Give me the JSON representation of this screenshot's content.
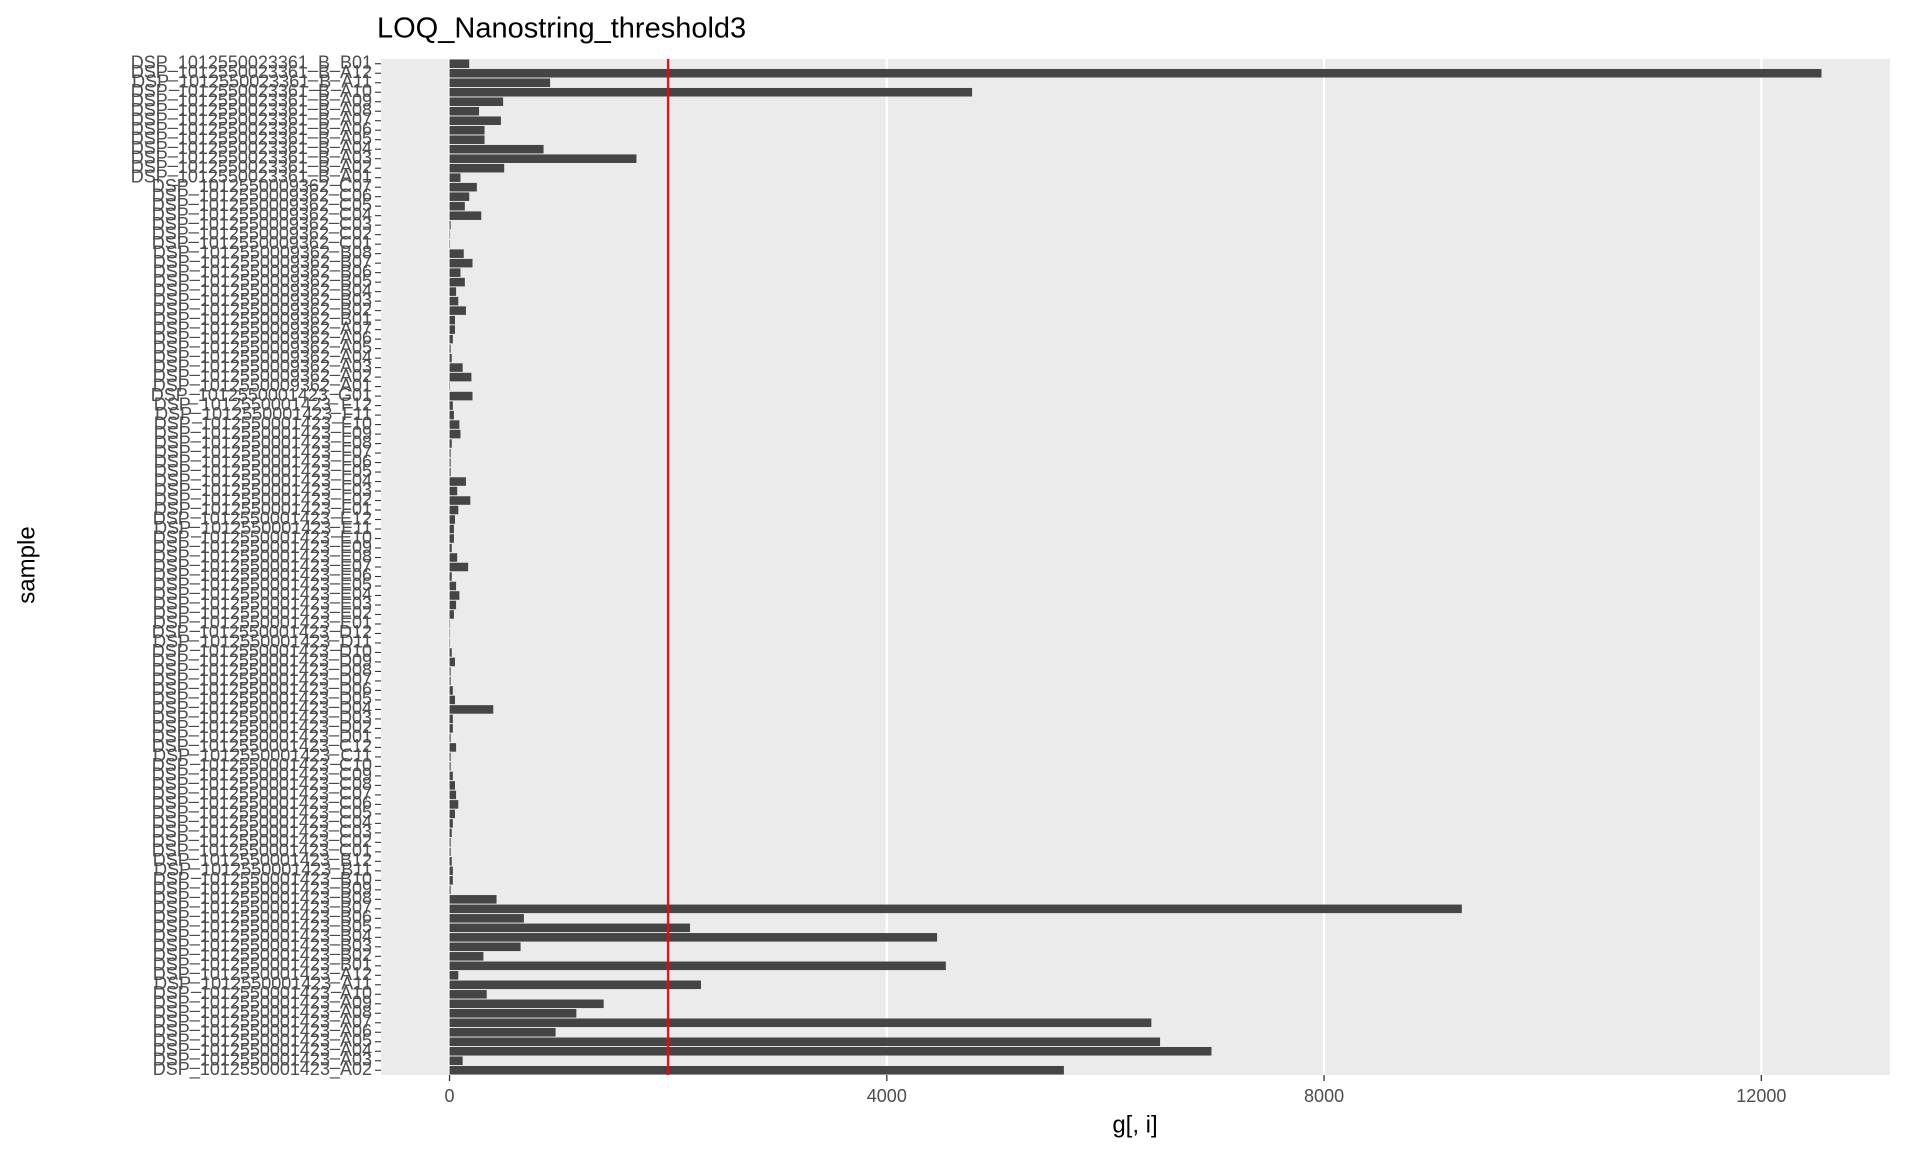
{
  "chart_data": {
    "type": "bar",
    "orientation": "horizontal",
    "title": "LOQ_Nanostring_threshold3",
    "x_label": "g[, i]",
    "y_label": "sample",
    "color": "#454545",
    "threshold": 2000,
    "threshold_color": "#ff0000",
    "xlim": [
      -627,
      13177
    ],
    "xticks": [
      0,
      4000,
      8000,
      12000
    ],
    "grid": true,
    "categories": [
      "DSP_1012550023361_B_B01",
      "DSP_1012550023361_B_A12",
      "DSP_1012550023361_B_A11",
      "DSP_1012550023361_B_A10",
      "DSP_1012550023361_B_A09",
      "DSP_1012550023361_B_A08",
      "DSP_1012550023361_B_A07",
      "DSP_1012550023361_B_A06",
      "DSP_1012550023361_B_A05",
      "DSP_1012550023361_B_A04",
      "DSP_1012550023361_B_A03",
      "DSP_1012550023361_B_A02",
      "DSP_1012550023361_B_A01",
      "DSP_1012550009362_C07",
      "DSP_1012550009362_C06",
      "DSP_1012550009362_C05",
      "DSP_1012550009362_C04",
      "DSP_1012550009362_C03",
      "DSP_1012550009362_C02",
      "DSP_1012550009362_C01",
      "DSP_1012550009362_B08",
      "DSP_1012550009362_B07",
      "DSP_1012550009362_B06",
      "DSP_1012550009362_B05",
      "DSP_1012550009362_B04",
      "DSP_1012550009362_B03",
      "DSP_1012550009362_B02",
      "DSP_1012550009362_B01",
      "DSP_1012550009362_A07",
      "DSP_1012550009362_A06",
      "DSP_1012550009362_A05",
      "DSP_1012550009362_A04",
      "DSP_1012550009362_A03",
      "DSP_1012550009362_A02",
      "DSP_1012550009362_A01",
      "DSP_1012550001423_G01",
      "DSP_1012550001423_F12",
      "DSP_1012550001423_F11",
      "DSP_1012550001423_F10",
      "DSP_1012550001423_F09",
      "DSP_1012550001423_F08",
      "DSP_1012550001423_F07",
      "DSP_1012550001423_F06",
      "DSP_1012550001423_F05",
      "DSP_1012550001423_F04",
      "DSP_1012550001423_F03",
      "DSP_1012550001423_F02",
      "DSP_1012550001423_F01",
      "DSP_1012550001423_E12",
      "DSP_1012550001423_E11",
      "DSP_1012550001423_E10",
      "DSP_1012550001423_E09",
      "DSP_1012550001423_E08",
      "DSP_1012550001423_E07",
      "DSP_1012550001423_E06",
      "DSP_1012550001423_E05",
      "DSP_1012550001423_E04",
      "DSP_1012550001423_E03",
      "DSP_1012550001423_E02",
      "DSP_1012550001423_E01",
      "DSP_1012550001423_D12",
      "DSP_1012550001423_D11",
      "DSP_1012550001423_D10",
      "DSP_1012550001423_D09",
      "DSP_1012550001423_D08",
      "DSP_1012550001423_D07",
      "DSP_1012550001423_D06",
      "DSP_1012550001423_D05",
      "DSP_1012550001423_D04",
      "DSP_1012550001423_D03",
      "DSP_1012550001423_D02",
      "DSP_1012550001423_D01",
      "DSP_1012550001423_C12",
      "DSP_1012550001423_C11",
      "DSP_1012550001423_C10",
      "DSP_1012550001423_C09",
      "DSP_1012550001423_C08",
      "DSP_1012550001423_C07",
      "DSP_1012550001423_C06",
      "DSP_1012550001423_C05",
      "DSP_1012550001423_C04",
      "DSP_1012550001423_C03",
      "DSP_1012550001423_C02",
      "DSP_1012550001423_C01",
      "DSP_1012550001423_B12",
      "DSP_1012550001423_B11",
      "DSP_1012550001423_B10",
      "DSP_1012550001423_B09",
      "DSP_1012550001423_B08",
      "DSP_1012550001423_B07",
      "DSP_1012550001423_B06",
      "DSP_1012550001423_B05",
      "DSP_1012550001423_B04",
      "DSP_1012550001423_B03",
      "DSP_1012550001423_B02",
      "DSP_1012550001423_B01",
      "DSP_1012550001423_A12",
      "DSP_1012550001423_A11",
      "DSP_1012550001423_A10",
      "DSP_1012550001423_A09",
      "DSP_1012550001423_A08",
      "DSP_1012550001423_A07",
      "DSP_1012550001423_A06",
      "DSP_1012550001423_A05",
      "DSP_1012550001423_A04",
      "DSP_1012550001423_A03",
      "DSP_1012550001423_A02"
    ],
    "values": [
      180,
      12550,
      920,
      4780,
      490,
      270,
      470,
      320,
      320,
      860,
      1710,
      500,
      100,
      250,
      180,
      140,
      290,
      10,
      5,
      5,
      130,
      210,
      100,
      140,
      60,
      80,
      150,
      50,
      50,
      30,
      10,
      20,
      120,
      200,
      5,
      210,
      30,
      40,
      90,
      100,
      20,
      10,
      10,
      10,
      150,
      70,
      190,
      80,
      50,
      40,
      40,
      20,
      70,
      170,
      20,
      60,
      90,
      60,
      40,
      5,
      5,
      5,
      20,
      50,
      10,
      10,
      30,
      50,
      400,
      30,
      30,
      10,
      60,
      10,
      10,
      30,
      50,
      60,
      80,
      50,
      30,
      20,
      10,
      10,
      20,
      30,
      30,
      10,
      430,
      9260,
      680,
      2200,
      4460,
      650,
      310,
      4540,
      80,
      2300,
      340,
      1410,
      1160,
      6420,
      970,
      6500,
      6970,
      120,
      5620
    ]
  }
}
